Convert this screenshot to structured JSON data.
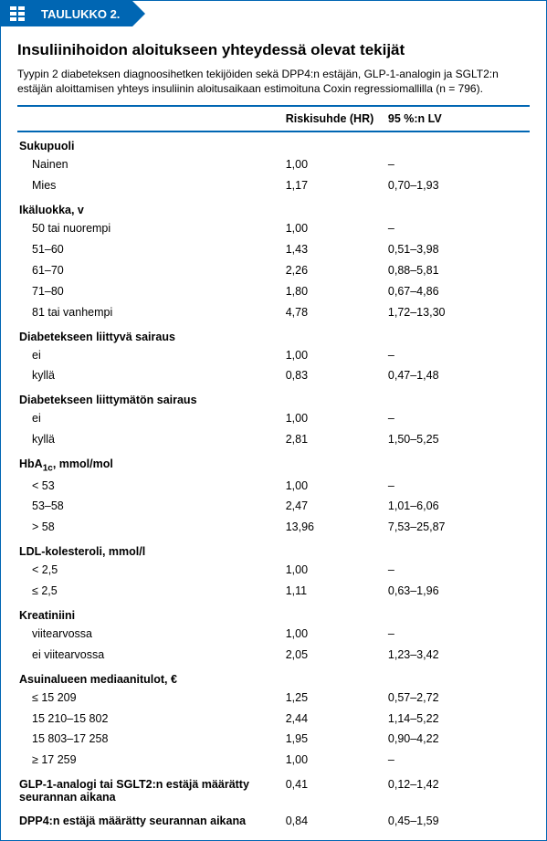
{
  "header_label": "TAULUKKO 2.",
  "title": "Insuliinihoidon aloitukseen yhteydessä olevat tekijät",
  "subtitle": "Tyypin 2 diabeteksen diagnoosihetken tekijöiden sekä DPP4:n estäjän, GLP-1-analogin ja SGLT2:n estäjän aloittamisen yhteys insuliinin aloitusaikaan estimoituna Coxin regressiomallilla (n = 796).",
  "columns": {
    "hr": "Riskisuhde (HR)",
    "ci": "95 %:n LV"
  },
  "groups": [
    {
      "label": "Sukupuoli",
      "rows": [
        {
          "label": "Nainen",
          "hr": "1,00",
          "ci": "–"
        },
        {
          "label": "Mies",
          "hr": "1,17",
          "ci": "0,70–1,93"
        }
      ]
    },
    {
      "label": "Ikäluokka, v",
      "rows": [
        {
          "label": "50 tai nuorempi",
          "hr": "1,00",
          "ci": "–"
        },
        {
          "label": "51–60",
          "hr": "1,43",
          "ci": "0,51–3,98"
        },
        {
          "label": "61–70",
          "hr": "2,26",
          "ci": "0,88–5,81"
        },
        {
          "label": "71–80",
          "hr": "1,80",
          "ci": "0,67–4,86"
        },
        {
          "label": "81 tai vanhempi",
          "hr": "4,78",
          "ci": "1,72–13,30"
        }
      ]
    },
    {
      "label": "Diabetekseen liittyvä sairaus",
      "rows": [
        {
          "label": "ei",
          "hr": "1,00",
          "ci": "–"
        },
        {
          "label": "kyllä",
          "hr": "0,83",
          "ci": "0,47–1,48"
        }
      ]
    },
    {
      "label": "Diabetekseen liittymätön sairaus",
      "rows": [
        {
          "label": "ei",
          "hr": "1,00",
          "ci": "–"
        },
        {
          "label": "kyllä",
          "hr": "2,81",
          "ci": "1,50–5,25"
        }
      ]
    },
    {
      "label": "HbA₁c, mmol/mol",
      "html": true,
      "label_html": "HbA<span class='sub-span'>1c</span>, mmol/mol",
      "rows": [
        {
          "label": "< 53",
          "hr": "1,00",
          "ci": "–"
        },
        {
          "label": "53–58",
          "hr": "2,47",
          "ci": "1,01–6,06"
        },
        {
          "label": "> 58",
          "hr": "13,96",
          "ci": "7,53–25,87"
        }
      ]
    },
    {
      "label": "LDL-kolesteroli, mmol/l",
      "rows": [
        {
          "label": "< 2,5",
          "hr": "1,00",
          "ci": "–"
        },
        {
          "label": "≤ 2,5",
          "hr": "1,11",
          "ci": "0,63–1,96"
        }
      ]
    },
    {
      "label": "Kreatiniini",
      "rows": [
        {
          "label": "viitearvossa",
          "hr": "1,00",
          "ci": "–"
        },
        {
          "label": "ei viitearvossa",
          "hr": "2,05",
          "ci": "1,23–3,42"
        }
      ]
    },
    {
      "label": "Asuinalueen mediaanitulot, €",
      "rows": [
        {
          "label": "≤ 15 209",
          "hr": "1,25",
          "ci": "0,57–2,72"
        },
        {
          "label": "15 210–15 802",
          "hr": "2,44",
          "ci": "1,14–5,22"
        },
        {
          "label": "15 803–17 258",
          "hr": "1,95",
          "ci": "0,90–4,22"
        },
        {
          "label": "≥ 17 259",
          "hr": "1,00",
          "ci": "–"
        }
      ]
    }
  ],
  "standalone": [
    {
      "label": "GLP-1-analogi tai SGLT2:n estäjä määrätty seurannan aikana",
      "hr": "0,41",
      "ci": "0,12–1,42"
    },
    {
      "label": "DPP4:n estäjä määrätty seurannan aikana",
      "hr": "0,84",
      "ci": "0,45–1,59"
    }
  ],
  "colors": {
    "brand": "#0066b3",
    "text": "#000000",
    "background": "#ffffff"
  }
}
